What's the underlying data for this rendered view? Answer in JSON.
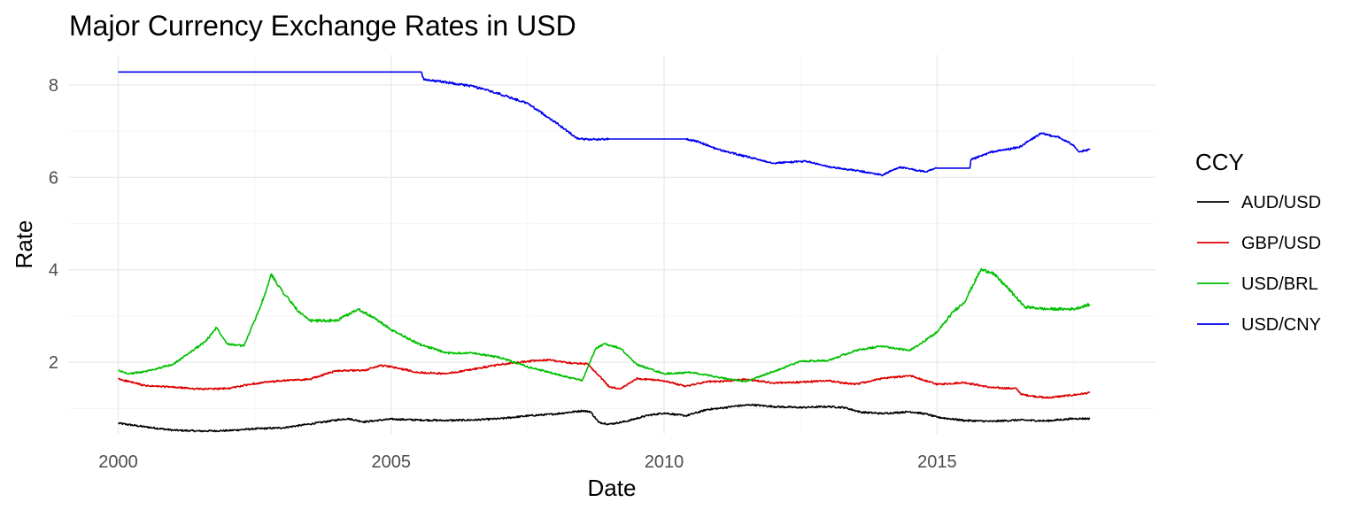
{
  "chart_data": {
    "type": "line",
    "title": "Major Currency Exchange Rates in USD",
    "xlabel": "Date",
    "ylabel": "Rate",
    "xlim": [
      1999.1,
      2019.0
    ],
    "ylim": [
      0.45,
      8.65
    ],
    "x_ticks": [
      2000,
      2005,
      2010,
      2015
    ],
    "x_tick_labels": [
      "2000",
      "2005",
      "2010",
      "2015"
    ],
    "y_ticks": [
      2,
      4,
      6,
      8
    ],
    "y_tick_labels": [
      "2",
      "4",
      "6",
      "8"
    ],
    "grid": true,
    "legend": {
      "title": "CCY",
      "position": "right"
    },
    "series": [
      {
        "name": "AUD/USD",
        "color": "#000000",
        "points": [
          [
            2000.0,
            0.68
          ],
          [
            2000.5,
            0.6
          ],
          [
            2001.0,
            0.53
          ],
          [
            2001.5,
            0.51
          ],
          [
            2002.0,
            0.52
          ],
          [
            2002.5,
            0.56
          ],
          [
            2003.0,
            0.58
          ],
          [
            2003.5,
            0.66
          ],
          [
            2004.0,
            0.75
          ],
          [
            2004.2,
            0.78
          ],
          [
            2004.5,
            0.71
          ],
          [
            2005.0,
            0.77
          ],
          [
            2005.5,
            0.75
          ],
          [
            2006.0,
            0.74
          ],
          [
            2006.5,
            0.75
          ],
          [
            2007.0,
            0.78
          ],
          [
            2007.5,
            0.84
          ],
          [
            2008.0,
            0.88
          ],
          [
            2008.5,
            0.95
          ],
          [
            2008.65,
            0.93
          ],
          [
            2008.8,
            0.7
          ],
          [
            2009.0,
            0.66
          ],
          [
            2009.3,
            0.72
          ],
          [
            2009.7,
            0.85
          ],
          [
            2010.0,
            0.9
          ],
          [
            2010.4,
            0.84
          ],
          [
            2010.8,
            0.98
          ],
          [
            2011.0,
            1.0
          ],
          [
            2011.3,
            1.05
          ],
          [
            2011.6,
            1.08
          ],
          [
            2012.0,
            1.04
          ],
          [
            2012.5,
            1.02
          ],
          [
            2013.0,
            1.04
          ],
          [
            2013.3,
            1.02
          ],
          [
            2013.6,
            0.92
          ],
          [
            2014.0,
            0.89
          ],
          [
            2014.5,
            0.93
          ],
          [
            2014.8,
            0.88
          ],
          [
            2015.0,
            0.81
          ],
          [
            2015.5,
            0.74
          ],
          [
            2016.0,
            0.72
          ],
          [
            2016.5,
            0.75
          ],
          [
            2017.0,
            0.73
          ],
          [
            2017.5,
            0.78
          ],
          [
            2017.8,
            0.78
          ]
        ]
      },
      {
        "name": "GBP/USD",
        "color": "#dd0000",
        "points": [
          [
            2000.0,
            1.64
          ],
          [
            2000.5,
            1.49
          ],
          [
            2001.0,
            1.46
          ],
          [
            2001.5,
            1.42
          ],
          [
            2002.0,
            1.43
          ],
          [
            2002.5,
            1.54
          ],
          [
            2003.0,
            1.6
          ],
          [
            2003.5,
            1.63
          ],
          [
            2004.0,
            1.82
          ],
          [
            2004.5,
            1.82
          ],
          [
            2004.8,
            1.93
          ],
          [
            2005.0,
            1.9
          ],
          [
            2005.5,
            1.78
          ],
          [
            2006.0,
            1.75
          ],
          [
            2006.5,
            1.85
          ],
          [
            2007.0,
            1.95
          ],
          [
            2007.5,
            2.02
          ],
          [
            2007.9,
            2.05
          ],
          [
            2008.3,
            1.98
          ],
          [
            2008.6,
            1.96
          ],
          [
            2008.8,
            1.72
          ],
          [
            2009.0,
            1.46
          ],
          [
            2009.2,
            1.42
          ],
          [
            2009.5,
            1.65
          ],
          [
            2010.0,
            1.6
          ],
          [
            2010.4,
            1.48
          ],
          [
            2010.8,
            1.58
          ],
          [
            2011.0,
            1.58
          ],
          [
            2011.5,
            1.63
          ],
          [
            2012.0,
            1.55
          ],
          [
            2012.5,
            1.57
          ],
          [
            2013.0,
            1.6
          ],
          [
            2013.5,
            1.52
          ],
          [
            2014.0,
            1.65
          ],
          [
            2014.5,
            1.71
          ],
          [
            2015.0,
            1.52
          ],
          [
            2015.5,
            1.56
          ],
          [
            2016.0,
            1.45
          ],
          [
            2016.45,
            1.43
          ],
          [
            2016.55,
            1.3
          ],
          [
            2017.0,
            1.23
          ],
          [
            2017.5,
            1.29
          ],
          [
            2017.8,
            1.34
          ]
        ]
      },
      {
        "name": "USD/BRL",
        "color": "#00c000",
        "points": [
          [
            2000.0,
            1.82
          ],
          [
            2000.2,
            1.75
          ],
          [
            2000.5,
            1.8
          ],
          [
            2001.0,
            1.95
          ],
          [
            2001.3,
            2.2
          ],
          [
            2001.6,
            2.45
          ],
          [
            2001.8,
            2.75
          ],
          [
            2002.0,
            2.4
          ],
          [
            2002.3,
            2.35
          ],
          [
            2002.5,
            2.9
          ],
          [
            2002.7,
            3.5
          ],
          [
            2002.8,
            3.9
          ],
          [
            2003.0,
            3.55
          ],
          [
            2003.3,
            3.1
          ],
          [
            2003.5,
            2.9
          ],
          [
            2004.0,
            2.9
          ],
          [
            2004.4,
            3.15
          ],
          [
            2004.7,
            2.95
          ],
          [
            2005.0,
            2.7
          ],
          [
            2005.5,
            2.4
          ],
          [
            2006.0,
            2.2
          ],
          [
            2006.5,
            2.2
          ],
          [
            2007.0,
            2.1
          ],
          [
            2007.5,
            1.9
          ],
          [
            2008.0,
            1.75
          ],
          [
            2008.5,
            1.6
          ],
          [
            2008.75,
            2.3
          ],
          [
            2008.9,
            2.4
          ],
          [
            2009.2,
            2.3
          ],
          [
            2009.5,
            1.95
          ],
          [
            2010.0,
            1.75
          ],
          [
            2010.5,
            1.78
          ],
          [
            2011.0,
            1.67
          ],
          [
            2011.5,
            1.58
          ],
          [
            2012.0,
            1.8
          ],
          [
            2012.5,
            2.02
          ],
          [
            2013.0,
            2.04
          ],
          [
            2013.5,
            2.25
          ],
          [
            2014.0,
            2.35
          ],
          [
            2014.5,
            2.25
          ],
          [
            2015.0,
            2.65
          ],
          [
            2015.3,
            3.1
          ],
          [
            2015.5,
            3.3
          ],
          [
            2015.8,
            4.0
          ],
          [
            2016.0,
            3.95
          ],
          [
            2016.3,
            3.6
          ],
          [
            2016.6,
            3.2
          ],
          [
            2017.0,
            3.15
          ],
          [
            2017.5,
            3.15
          ],
          [
            2017.8,
            3.25
          ]
        ]
      },
      {
        "name": "USD/CNY",
        "color": "#0000ee",
        "points": [
          [
            2000.0,
            8.28
          ],
          [
            2005.55,
            8.28
          ],
          [
            2005.6,
            8.11
          ],
          [
            2006.0,
            8.06
          ],
          [
            2006.5,
            7.97
          ],
          [
            2007.0,
            7.8
          ],
          [
            2007.5,
            7.6
          ],
          [
            2008.0,
            7.2
          ],
          [
            2008.4,
            6.85
          ],
          [
            2008.6,
            6.82
          ],
          [
            2009.0,
            6.83
          ],
          [
            2010.4,
            6.83
          ],
          [
            2010.6,
            6.78
          ],
          [
            2011.0,
            6.6
          ],
          [
            2011.5,
            6.45
          ],
          [
            2012.0,
            6.31
          ],
          [
            2012.6,
            6.35
          ],
          [
            2013.0,
            6.23
          ],
          [
            2013.5,
            6.15
          ],
          [
            2014.0,
            6.05
          ],
          [
            2014.3,
            6.22
          ],
          [
            2014.8,
            6.12
          ],
          [
            2015.0,
            6.2
          ],
          [
            2015.6,
            6.2
          ],
          [
            2015.62,
            6.38
          ],
          [
            2016.0,
            6.55
          ],
          [
            2016.5,
            6.65
          ],
          [
            2016.9,
            6.95
          ],
          [
            2017.2,
            6.88
          ],
          [
            2017.5,
            6.7
          ],
          [
            2017.6,
            6.55
          ],
          [
            2017.8,
            6.6
          ]
        ]
      }
    ]
  }
}
